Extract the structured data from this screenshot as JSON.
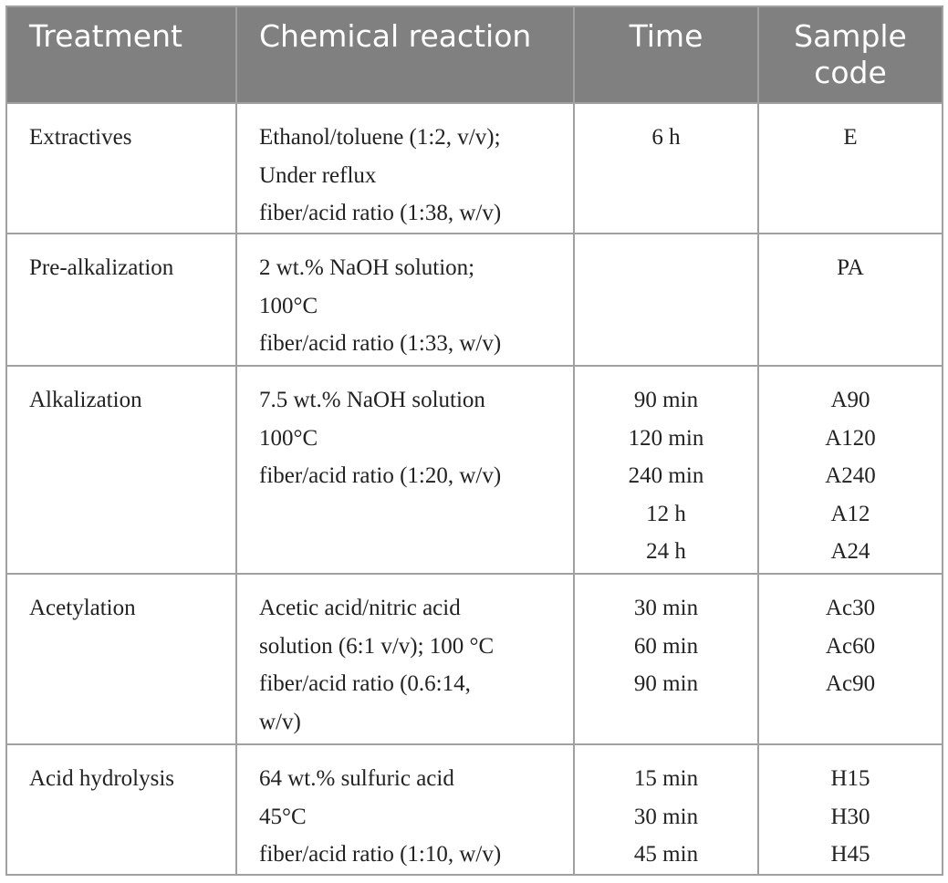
{
  "table": {
    "header": [
      "Treatment",
      "Chemical reaction",
      "Time",
      "Sample code"
    ],
    "rows": [
      [
        "Extractives",
        [
          "Ethanol/toluene (1:2, v/v);",
          "Under reflux",
          "fiber/acid ratio (1:38, w/v)"
        ],
        [
          "6 h"
        ],
        [
          "E"
        ]
      ],
      [
        "Pre-alkalization",
        [
          "2 wt.% NaOH solution;",
          "100°C",
          "fiber/acid ratio (1:33, w/v)"
        ],
        [],
        [
          "PA"
        ]
      ],
      [
        "Alkalization",
        [
          "7.5 wt.% NaOH solution",
          "100°C",
          "fiber/acid ratio (1:20, w/v)"
        ],
        [
          "90 min",
          "120 min",
          "240 min",
          "12 h",
          "24 h"
        ],
        [
          "A90",
          "A120",
          "A240",
          "A12",
          "A24"
        ]
      ],
      [
        "Acetylation",
        [
          "Acetic acid/nitric acid",
          "solution (6:1 v/v); 100 °C",
          "fiber/acid ratio (0.6:14,",
          "w/v)"
        ],
        [
          "30 min",
          "60 min",
          "90 min"
        ],
        [
          "Ac30",
          "Ac60",
          "Ac90"
        ]
      ],
      [
        "Acid hydrolysis",
        [
          "64 wt.% sulfuric acid",
          "45°C",
          "fiber/acid ratio (1:10, w/v)"
        ],
        [
          "15 min",
          "30 min",
          "45 min"
        ],
        [
          "H15",
          "H30",
          "H45"
        ]
      ]
    ]
  }
}
